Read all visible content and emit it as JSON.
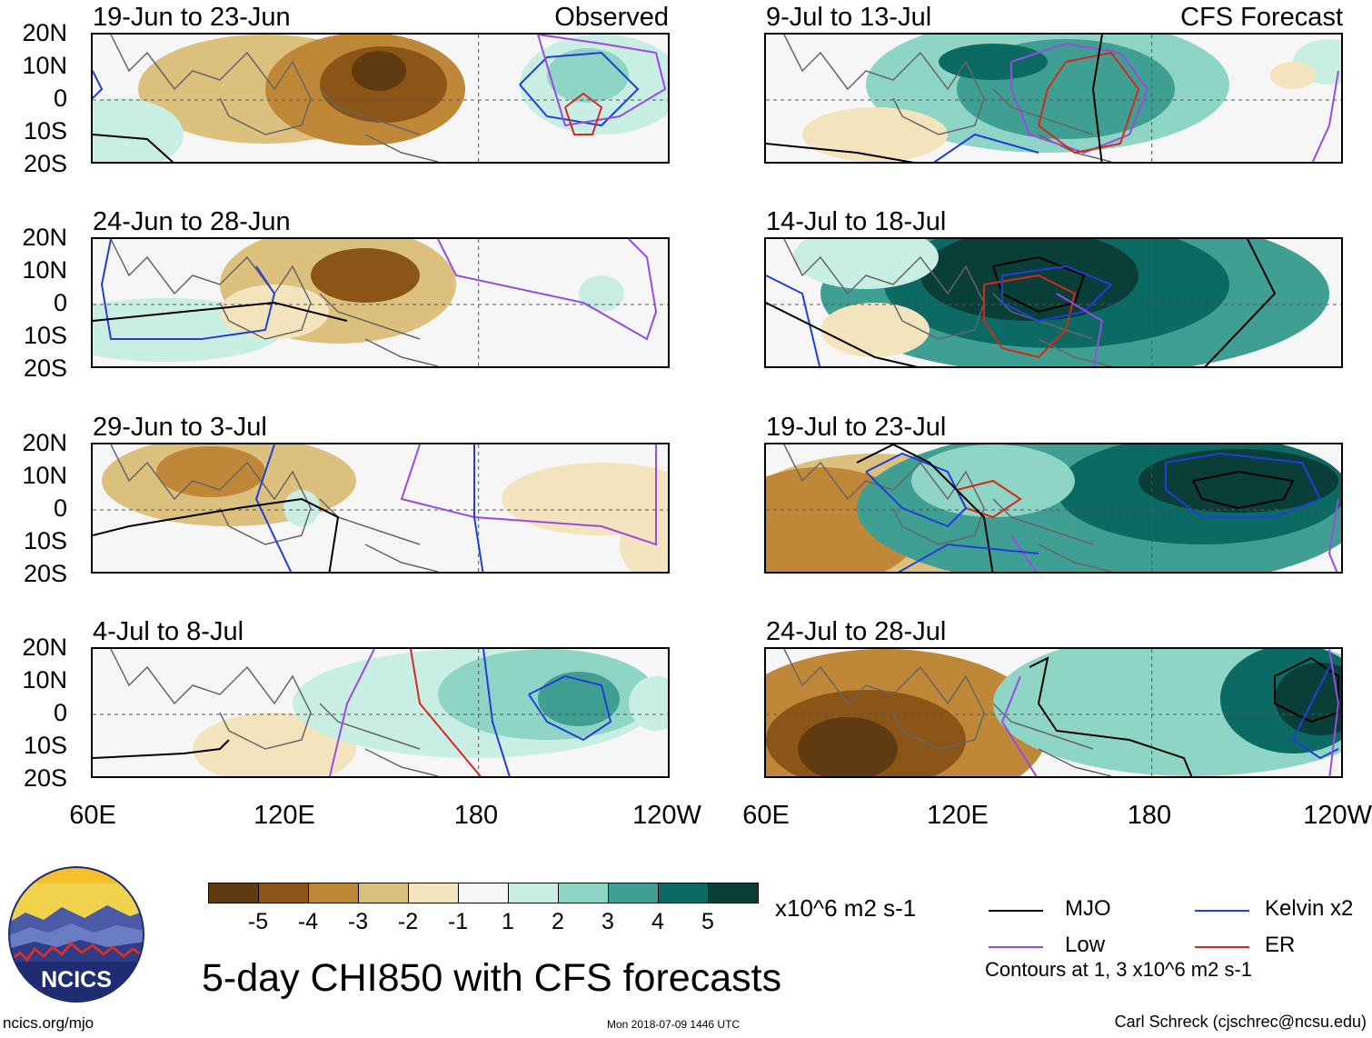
{
  "chart_data": {
    "type": "heatmap",
    "title": "5-day CHI850 with CFS forecasts",
    "variable": "CHI850",
    "units": "x10^6 m2 s-1",
    "colorbar": {
      "ticks": [
        "-5",
        "-4",
        "-3",
        "-2",
        "-1",
        "1",
        "2",
        "3",
        "4",
        "5"
      ],
      "colors": [
        "#603a11",
        "#8b5518",
        "#bf8838",
        "#dcc07e",
        "#f4e4be",
        "#f6f6f6",
        "#c9eee4",
        "#8fd5c5",
        "#3f9f93",
        "#0b6a64",
        "#0a3e38"
      ]
    },
    "y_ticks": [
      "20N",
      "10N",
      "0",
      "10S",
      "20S"
    ],
    "x_ticks": [
      "60E",
      "120E",
      "180",
      "120W"
    ],
    "lat_range": [
      -20,
      20
    ],
    "lon_range": [
      60,
      240
    ],
    "observed_label": "Observed",
    "forecast_label": "CFS Forecast",
    "panels_left": [
      {
        "title": "19-Jun to 23-Jun",
        "tag": "Observed"
      },
      {
        "title": "24-Jun to 28-Jun",
        "tag": ""
      },
      {
        "title": "29-Jun to 3-Jul",
        "tag": ""
      },
      {
        "title": "4-Jul to 8-Jul",
        "tag": ""
      }
    ],
    "panels_right": [
      {
        "title": "9-Jul to 13-Jul",
        "tag": "CFS Forecast"
      },
      {
        "title": "14-Jul to 18-Jul",
        "tag": ""
      },
      {
        "title": "19-Jul to 23-Jul",
        "tag": ""
      },
      {
        "title": "24-Jul to 28-Jul",
        "tag": ""
      }
    ],
    "contour_legend": [
      {
        "label": "MJO",
        "color": "#000000"
      },
      {
        "label": "Kelvin x2",
        "color": "#1f3fd8"
      },
      {
        "label": "Low",
        "color": "#9a4be0"
      },
      {
        "label": "ER",
        "color": "#d42a1e"
      }
    ],
    "contour_note": "Contours at 1, 3 x10^6 m2 s-1"
  },
  "logo_text": "NCICS",
  "footer": {
    "site": "ncics.org/mjo",
    "timestamp": "Mon 2018-07-09 1446 UTC",
    "author": "Carl Schreck (cjschrec@ncsu.edu)"
  }
}
